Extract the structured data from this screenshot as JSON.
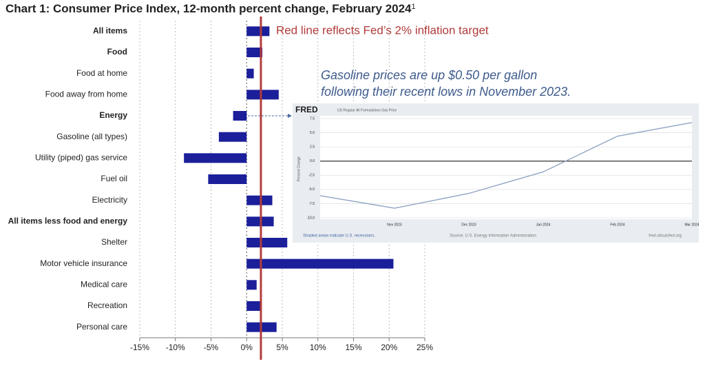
{
  "chart_data": [
    {
      "type": "hbar",
      "title": "Chart 1: Consumer Price Index, 12-month percent change, February 2024",
      "footnote_marker": "1",
      "categories": [
        "All items",
        "Food",
        "Food at home",
        "Food away from home",
        "Energy",
        "Gasoline (all types)",
        "Utility (piped) gas service",
        "Fuel oil",
        "Electricity",
        "All items less food and energy",
        "Shelter",
        "Motor vehicle insurance",
        "Medical care",
        "Recreation",
        "Personal care"
      ],
      "bold": [
        true,
        true,
        false,
        false,
        true,
        false,
        false,
        false,
        false,
        true,
        false,
        false,
        false,
        false,
        false
      ],
      "values": [
        3.2,
        2.2,
        1.0,
        4.5,
        -1.9,
        -3.9,
        -8.8,
        -5.4,
        3.6,
        3.8,
        5.7,
        20.6,
        1.4,
        2.1,
        4.2
      ],
      "color": "#1b1f9a",
      "xlim": [
        -15,
        25
      ],
      "xticks": [
        {
          "value": -15,
          "label": "-15%"
        },
        {
          "value": -10,
          "label": "-10%"
        },
        {
          "value": -5,
          "label": "-5%"
        },
        {
          "value": 0,
          "label": "0%"
        },
        {
          "value": 5,
          "label": "5%"
        },
        {
          "value": 10,
          "label": "10%"
        },
        {
          "value": 15,
          "label": "15%"
        },
        {
          "value": 20,
          "label": "20%"
        },
        {
          "value": 25,
          "label": "25%"
        }
      ],
      "grid": true,
      "reference_line": {
        "value": 2,
        "color": "#b23a3a",
        "label": "Red line reflects Fed’s 2% inflation target"
      },
      "annotation": [
        "Gasoline prices are up $0.50 per gallon",
        "following their recent lows in November 2023."
      ]
    },
    {
      "type": "line",
      "logo": "FRED",
      "title": "US Regular All Formulations Gas Price",
      "ylabel": "Percent Change",
      "categories": [
        null,
        "Nov 2023",
        "Dec 2023",
        "Jan 2024",
        "Feb 2024",
        "Mar 2024"
      ],
      "series": [
        {
          "name": "US Regular All Formulations Gas Price",
          "color": "#8fa4c4",
          "values": [
            -6.1,
            -8.3,
            -5.7,
            -1.9,
            4.4,
            6.8
          ]
        }
      ],
      "ylim": [
        -10,
        7.5
      ],
      "yticks": [
        7.5,
        {
          "value": 5,
          "label": "5.0"
        },
        2.5,
        {
          "value": 0,
          "label": "0.0"
        },
        -2.5,
        {
          "value": -5,
          "label": "-5.0"
        },
        -7.5,
        {
          "value": -10,
          "label": "-10.0"
        }
      ],
      "grid": true,
      "notes": "Shaded areas indicate U.S. recessions.",
      "source": "Source: U.S. Energy Information Administration",
      "url": "fred.stlouisfed.org"
    }
  ]
}
